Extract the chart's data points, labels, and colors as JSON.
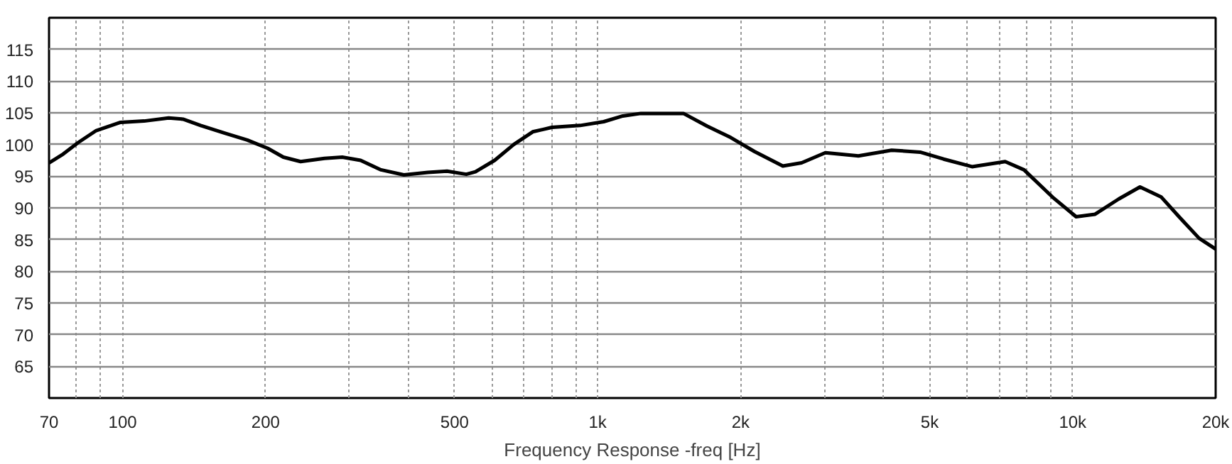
{
  "chart_data": {
    "type": "line",
    "xlabel": "Frequency Response -freq [Hz]",
    "x": [
      70,
      75,
      80.6,
      88,
      99,
      111,
      125,
      134,
      146,
      164,
      183,
      202,
      218,
      237,
      266,
      290,
      317,
      350,
      391,
      439,
      482,
      529,
      553,
      607,
      666,
      730,
      801,
      919,
      1030,
      1130,
      1233,
      1516,
      1700,
      1906,
      2138,
      2454,
      2688,
      3016,
      3540,
      4158,
      4774,
      5350,
      6140,
      7210,
      7900,
      9070,
      10170,
      11150,
      12500,
      13860,
      15370,
      16840,
      18460,
      20000
    ],
    "series": [
      {
        "color": "#000000",
        "values": [
          97.1,
          98.5,
          100.3,
          102.2,
          103.5,
          103.7,
          104.2,
          104.0,
          103.0,
          101.8,
          100.7,
          99.4,
          98.0,
          97.3,
          97.8,
          98.0,
          97.5,
          96.0,
          95.2,
          95.6,
          95.8,
          95.3,
          95.7,
          97.5,
          100.0,
          102.0,
          102.7,
          103.0,
          103.6,
          104.5,
          104.9,
          104.9,
          102.9,
          101.1,
          98.9,
          96.6,
          97.1,
          98.7,
          98.2,
          99.1,
          98.8,
          97.7,
          96.5,
          97.3,
          96.0,
          91.7,
          88.6,
          89.0,
          91.4,
          93.3,
          91.7,
          88.4,
          85.2,
          83.5
        ]
      }
    ],
    "log": "x",
    "xlim": [
      70,
      20000
    ],
    "ylim": [
      60,
      120
    ],
    "xticks": [
      70,
      {
        "value": 80,
        "label": null
      },
      {
        "value": 90,
        "label": null
      },
      100,
      200,
      {
        "value": 300,
        "label": null
      },
      {
        "value": 400,
        "label": null
      },
      500,
      {
        "value": 600,
        "label": null
      },
      {
        "value": 700,
        "label": null
      },
      {
        "value": 800,
        "label": null
      },
      {
        "value": 900,
        "label": null
      },
      {
        "value": 1000,
        "label": "1k"
      },
      {
        "value": 2000,
        "label": "2k"
      },
      {
        "value": 3000,
        "label": null
      },
      {
        "value": 4000,
        "label": null
      },
      {
        "value": 5000,
        "label": "5k"
      },
      {
        "value": 6000,
        "label": null
      },
      {
        "value": 7000,
        "label": null
      },
      {
        "value": 8000,
        "label": null
      },
      {
        "value": 9000,
        "label": null
      },
      {
        "value": 10000,
        "label": "10k"
      },
      {
        "value": 20000,
        "label": "20k"
      }
    ],
    "yticks": [
      65,
      70,
      75,
      80,
      85,
      90,
      95,
      100,
      105,
      110,
      115
    ],
    "grid": true,
    "line_style": "solid",
    "marker": "none"
  }
}
